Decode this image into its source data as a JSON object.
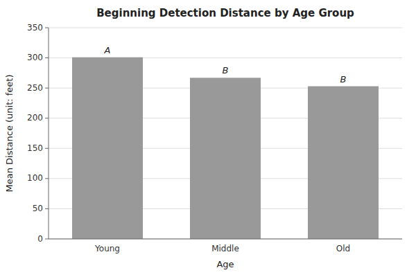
{
  "chart_data": {
    "type": "bar",
    "title": "Beginning Detection Distance by Age Group",
    "x_label": "Age",
    "y_label": "Mean Distance (unit: feet)",
    "categories": [
      "Young",
      "Middle",
      "Old"
    ],
    "values": [
      301,
      267,
      253
    ],
    "color": "#999999",
    "annotations": [
      "A",
      "B",
      "B"
    ],
    "ylim": [
      0,
      350
    ],
    "yticks": [
      0,
      50,
      100,
      150,
      200,
      250,
      300,
      350
    ],
    "grid": true
  }
}
